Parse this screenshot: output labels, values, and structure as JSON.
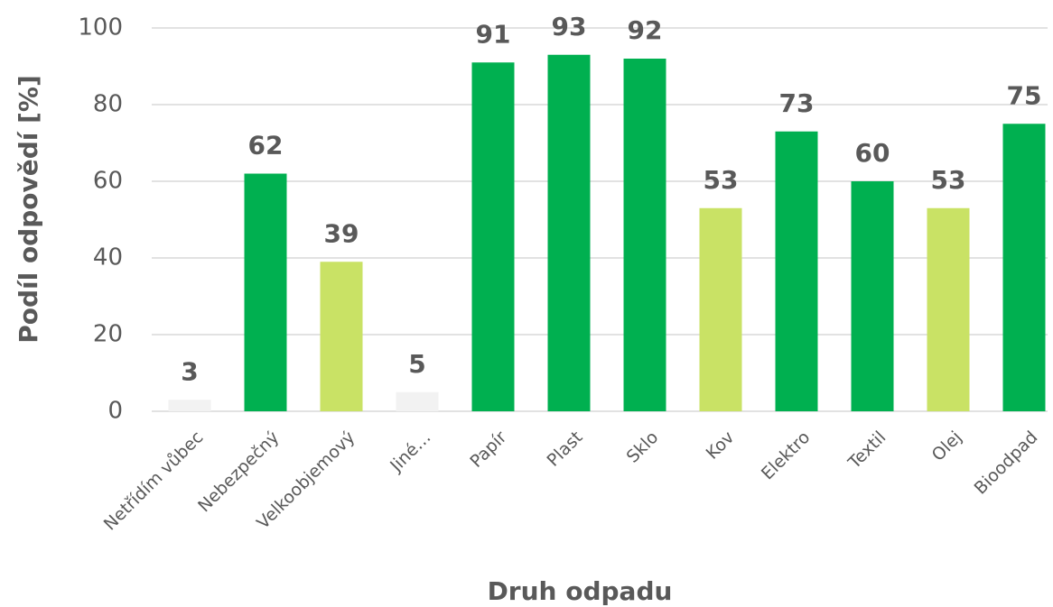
{
  "chart_data": {
    "type": "bar",
    "xlabel": "Druh odpadu",
    "ylabel": "Podíl odpovědí [%]",
    "categories": [
      "Netřídím vůbec",
      "Nebezpečný",
      "Velkoobjemový",
      "Jiné…",
      "Papír",
      "Plast",
      "Sklo",
      "Kov",
      "Elektro",
      "Textil",
      "Olej",
      "Bioodpad"
    ],
    "values": [
      3,
      62,
      39,
      5,
      91,
      93,
      92,
      53,
      73,
      60,
      53,
      75
    ],
    "colors": [
      "#f2f2f2",
      "#00b050",
      "#c9e265",
      "#f2f2f2",
      "#00b050",
      "#00b050",
      "#00b050",
      "#c9e265",
      "#00b050",
      "#00b050",
      "#c9e265",
      "#00b050"
    ],
    "ylim": [
      0,
      100
    ],
    "yticks": [
      0,
      20,
      40,
      60,
      80,
      100
    ],
    "grid": true
  }
}
